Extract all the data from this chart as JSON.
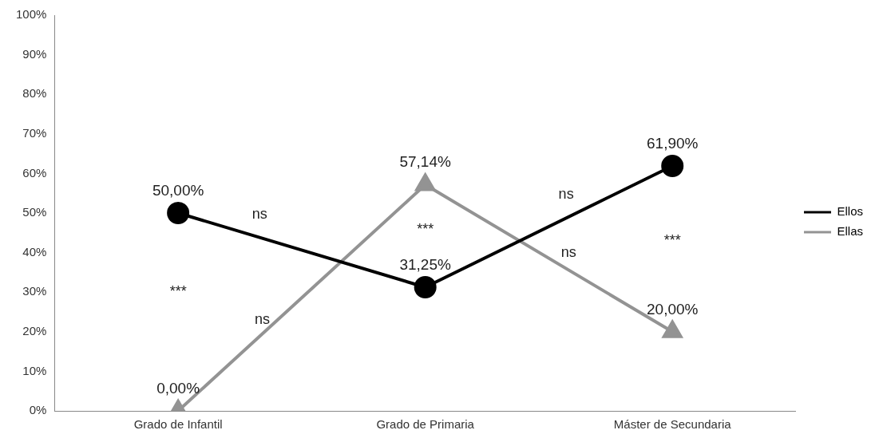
{
  "chart_data": {
    "type": "line",
    "categories": [
      "Grado de Infantil",
      "Grado de Primaria",
      "Máster de Secundaria"
    ],
    "series": [
      {
        "name": "Ellos",
        "color": "#000000",
        "marker": "circle",
        "values": [
          50,
          31.25,
          61.9
        ],
        "value_labels": [
          "50,00%",
          "31,25%",
          "61,90%"
        ]
      },
      {
        "name": "Ellas",
        "color": "#939393",
        "marker": "triangle",
        "values": [
          0,
          57.14,
          20
        ],
        "value_labels": [
          "0,00%",
          "57,14%",
          "20,00%"
        ]
      }
    ],
    "ylim": [
      0,
      100
    ],
    "yticks": [
      {
        "value": 0,
        "label": "0%"
      },
      {
        "value": 10,
        "label": "10%"
      },
      {
        "value": 20,
        "label": "20%"
      },
      {
        "value": 30,
        "label": "30%"
      },
      {
        "value": 40,
        "label": "40%"
      },
      {
        "value": 50,
        "label": "50%"
      },
      {
        "value": 60,
        "label": "60%"
      },
      {
        "value": 70,
        "label": "70%"
      },
      {
        "value": 80,
        "label": "80%"
      },
      {
        "value": 90,
        "label": "90%"
      },
      {
        "value": 100,
        "label": "100%"
      }
    ],
    "grid": false,
    "legend": "right",
    "line_style": "solid",
    "annotations": [
      "ns",
      "***",
      "ns",
      "***",
      "ns",
      "ns",
      "***"
    ]
  }
}
